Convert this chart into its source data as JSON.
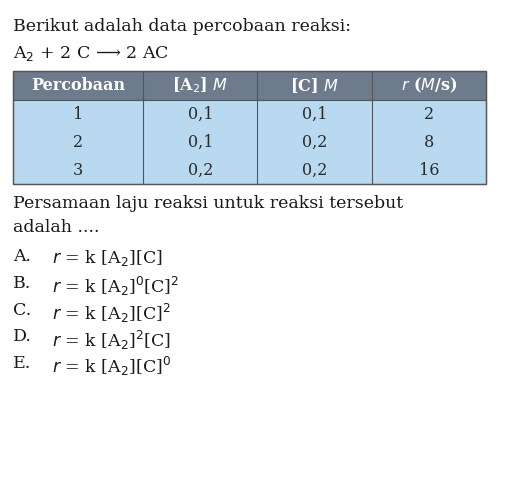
{
  "title_line": "Berikut adalah data percobaan reaksi:",
  "reaction": "A$_2$ + 2 C ⟶ 2 AC",
  "header_row_math": [
    "Percobaan",
    "[A$_2$] $M$",
    "[C] $M$",
    "$r$ ($M$/s)"
  ],
  "table_data": [
    [
      "1",
      "0,1",
      "0,1",
      "2"
    ],
    [
      "2",
      "0,1",
      "0,2",
      "8"
    ],
    [
      "3",
      "0,2",
      "0,2",
      "16"
    ]
  ],
  "header_bg": "#6d7b8d",
  "header_text": "#ffffff",
  "row_bg": "#b8d9f0",
  "row_text": "#2c2c2c",
  "question_text": "Persamaan laju reaksi untuk reaksi tersebut\nadalah ....",
  "options_math": [
    "$r$ = k [A$_2$][C]",
    "$r$ = k [A$_2$]$^0$[C]$^2$",
    "$r$ = k [A$_2$][C]$^2$",
    "$r$ = k [A$_2$]$^2$[C]",
    "$r$ = k [A$_2$][C]$^0$"
  ],
  "option_labels": [
    "A.",
    "B.",
    "C.",
    "D.",
    "E."
  ],
  "bg_color": "#ffffff",
  "text_color": "#1a1a1a",
  "font_size_title": 12.5,
  "font_size_reaction": 12.5,
  "font_size_table_header": 11.5,
  "font_size_table_data": 11.5,
  "font_size_question": 12.5,
  "font_size_options": 12.5
}
